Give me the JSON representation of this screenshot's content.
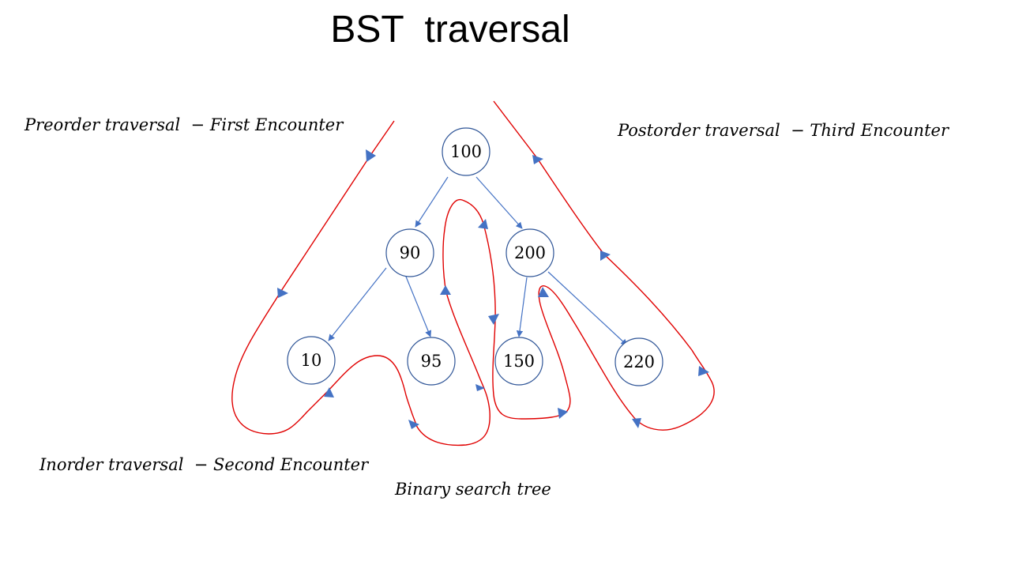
{
  "title": "BST  traversal",
  "labels": {
    "preorder": "Preorder traversal  − First Encounter",
    "postorder": "Postorder traversal  − Third Encounter",
    "inorder": "Inorder traversal  − Second Encounter"
  },
  "caption": "Binary search tree",
  "tree": {
    "nodes": [
      {
        "id": "n100",
        "value": "100"
      },
      {
        "id": "n90",
        "value": "90"
      },
      {
        "id": "n200",
        "value": "200"
      },
      {
        "id": "n10",
        "value": "10"
      },
      {
        "id": "n95",
        "value": "95"
      },
      {
        "id": "n150",
        "value": "150"
      },
      {
        "id": "n220",
        "value": "220"
      }
    ],
    "edges": [
      {
        "from": "n100",
        "to": "n90"
      },
      {
        "from": "n100",
        "to": "n200"
      },
      {
        "from": "n90",
        "to": "n10"
      },
      {
        "from": "n90",
        "to": "n95"
      },
      {
        "from": "n200",
        "to": "n150"
      },
      {
        "from": "n200",
        "to": "n220"
      }
    ]
  },
  "colors": {
    "node_stroke": "#2f5597",
    "edge": "#4472c4",
    "traversal_path": "#e00000",
    "arrow_marker": "#4472c4"
  }
}
